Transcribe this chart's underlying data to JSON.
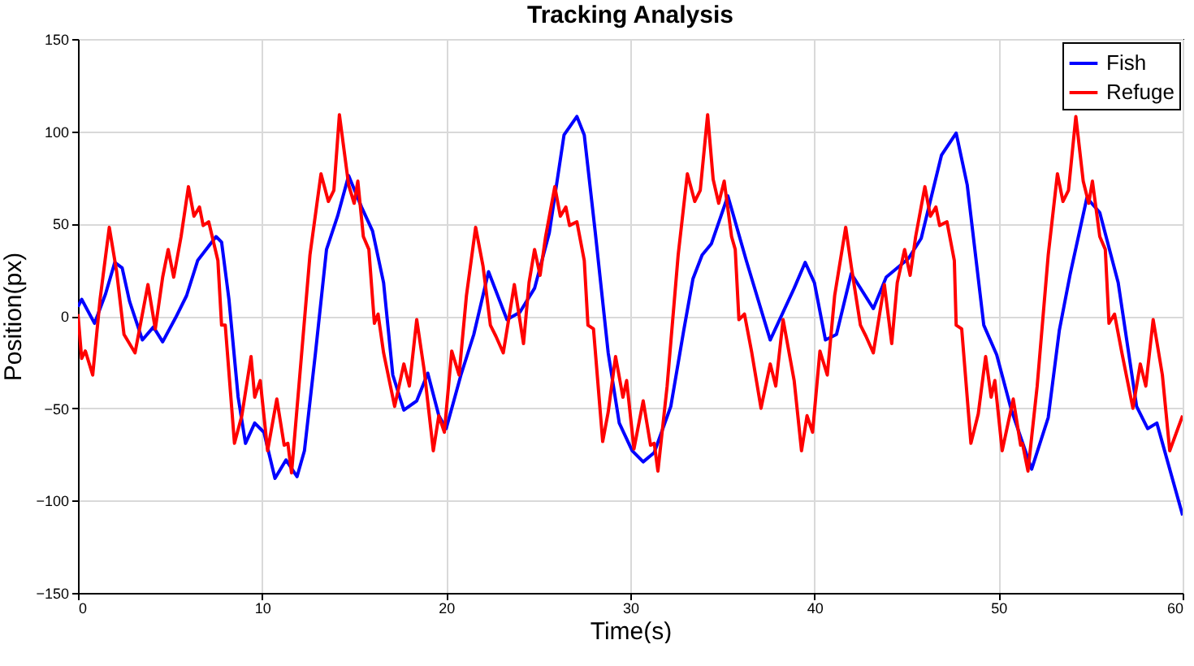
{
  "chart_data": {
    "type": "line",
    "title": "Tracking Analysis",
    "xlabel": "Time(s)",
    "ylabel": "Position(px)",
    "xlim": [
      0,
      60
    ],
    "xticks": [
      0,
      10,
      20,
      30,
      40,
      50,
      60
    ],
    "ylim": [
      -150,
      150
    ],
    "yticks": [
      -150,
      -100,
      -50,
      0,
      50,
      100,
      150
    ],
    "grid": true,
    "legend": "top right",
    "line_style": "solid",
    "marker": "none",
    "series": [
      {
        "name": "Fish",
        "color": "#0000ff",
        "x": [
          0,
          0.2,
          0.9,
          1.5,
          2.0,
          2.4,
          2.8,
          3.5,
          4.1,
          4.6,
          5.3,
          5.9,
          6.5,
          7.5,
          7.8,
          8.2,
          8.7,
          9.1,
          9.6,
          10.1,
          10.7,
          11.3,
          11.9,
          12.3,
          12.9,
          13.5,
          14.1,
          14.7,
          15.4,
          16.0,
          16.6,
          17.1,
          17.7,
          18.4,
          19.0,
          19.6,
          20.0,
          20.8,
          21.5,
          22.3,
          23.3,
          24.0,
          24.8,
          25.6,
          26.4,
          27.1,
          27.5,
          28.1,
          28.8,
          29.4,
          30.1,
          30.7,
          31.3,
          32.2,
          32.9,
          33.4,
          33.9,
          34.4,
          35.3,
          36.3,
          37.6,
          38.9,
          39.5,
          40.0,
          40.6,
          41.2,
          42.0,
          43.2,
          43.9,
          45.1,
          45.8,
          46.9,
          47.7,
          48.3,
          49.2,
          49.9,
          50.7,
          51.8,
          52.7,
          53.3,
          53.9,
          54.8,
          55.5,
          56.5,
          57.5,
          58.1,
          58.6,
          60
        ],
        "values": [
          5,
          9,
          -4,
          12,
          29,
          26,
          8,
          -13,
          -6,
          -14,
          -1,
          11,
          30,
          43,
          40,
          9,
          -44,
          -69,
          -58,
          -63,
          -88,
          -78,
          -87,
          -73,
          -20,
          36,
          54,
          76,
          59,
          46,
          18,
          -32,
          -51,
          -46,
          -31,
          -54,
          -61,
          -32,
          -10,
          24,
          -2,
          2,
          15,
          45,
          98,
          108,
          98,
          45,
          -20,
          -58,
          -73,
          -79,
          -74,
          -49,
          -8,
          20,
          33,
          39,
          65,
          30,
          -13,
          15,
          29,
          18,
          -13,
          -10,
          23,
          4,
          21,
          31,
          42,
          87,
          99,
          71,
          -5,
          -21,
          -51,
          -83,
          -55,
          -8,
          23,
          64,
          56,
          18,
          -49,
          -61,
          -58,
          -108
        ]
      },
      {
        "name": "Refuge",
        "color": "#ff0000",
        "x": [
          0,
          0.2,
          0.4,
          0.8,
          1.2,
          1.7,
          2.1,
          2.5,
          3.1,
          3.8,
          4.2,
          4.6,
          4.9,
          5.2,
          5.6,
          6.0,
          6.3,
          6.6,
          6.8,
          7.1,
          7.6,
          7.8,
          8.0,
          8.5,
          8.9,
          9.4,
          9.6,
          9.9,
          10.3,
          10.8,
          11.2,
          11.4,
          11.6,
          12.0,
          12.6,
          13.2,
          13.6,
          13.9,
          14.2,
          14.7,
          15.0,
          15.2,
          15.5,
          15.8,
          16.1,
          16.3,
          16.6,
          17.2,
          17.7,
          18.0,
          18.4,
          18.8,
          19.3,
          19.6,
          19.9,
          20.3,
          20.7,
          21.1,
          21.6,
          22.0,
          22.4,
          22.7,
          23.1,
          23.7,
          24.2,
          24.5,
          24.8,
          25.1,
          25.4,
          25.9,
          26.2,
          26.5,
          26.7,
          27.1,
          27.5,
          27.7,
          28.0,
          28.5,
          28.8,
          29.2,
          29.6,
          29.8,
          30.2,
          30.7,
          31.1,
          31.3,
          31.5,
          32.0,
          32.6,
          33.1,
          33.5,
          33.8,
          34.2,
          34.5,
          34.8,
          35.1,
          35.5,
          35.7,
          35.9,
          36.2,
          36.6,
          37.1,
          37.6,
          37.9,
          38.3,
          38.9,
          39.3,
          39.6,
          39.9,
          40.3,
          40.7,
          41.1,
          41.7,
          42.0,
          42.5,
          42.8,
          43.2,
          43.8,
          44.2,
          44.5,
          44.9,
          45.2,
          45.5,
          46.0,
          46.3,
          46.6,
          46.8,
          47.2,
          47.6,
          47.7,
          48.0,
          48.5,
          48.9,
          49.3,
          49.6,
          49.8,
          50.2,
          50.8,
          51.2,
          51.3,
          51.6,
          52.1,
          52.7,
          53.2,
          53.5,
          53.8,
          54.2,
          54.6,
          54.9,
          55.1,
          55.5,
          55.8,
          56.0,
          56.3,
          56.7,
          57.3,
          57.7,
          58.0,
          58.4,
          58.9,
          59.3,
          60
        ],
        "values": [
          1,
          -23,
          -19,
          -32,
          9,
          48,
          24,
          -10,
          -20,
          17,
          -7,
          21,
          36,
          21,
          43,
          70,
          54,
          59,
          49,
          51,
          30,
          -5,
          -5,
          -69,
          -54,
          -22,
          -44,
          -35,
          -73,
          -45,
          -70,
          -69,
          -85,
          -38,
          33,
          77,
          62,
          68,
          109,
          71,
          61,
          73,
          43,
          36,
          -4,
          1,
          -20,
          -49,
          -26,
          -38,
          -2,
          -29,
          -73,
          -54,
          -63,
          -19,
          -32,
          11,
          48,
          27,
          -5,
          -11,
          -20,
          17,
          -15,
          18,
          36,
          22,
          43,
          70,
          54,
          59,
          49,
          51,
          30,
          -5,
          -7,
          -68,
          -52,
          -22,
          -44,
          -35,
          -72,
          -46,
          -70,
          -69,
          -84,
          -38,
          33,
          77,
          62,
          68,
          109,
          74,
          61,
          73,
          43,
          36,
          -2,
          1,
          -20,
          -50,
          -26,
          -38,
          -2,
          -35,
          -73,
          -54,
          -63,
          -19,
          -32,
          11,
          48,
          27,
          -5,
          -11,
          -20,
          17,
          -15,
          18,
          36,
          22,
          43,
          70,
          54,
          59,
          49,
          51,
          30,
          -5,
          -7,
          -69,
          -53,
          -22,
          -44,
          -35,
          -73,
          -45,
          -70,
          -69,
          -84,
          -38,
          33,
          77,
          62,
          68,
          108,
          73,
          61,
          73,
          43,
          36,
          -4,
          1,
          -20,
          -50,
          -26,
          -38,
          -2,
          -32,
          -73,
          -54
        ]
      }
    ]
  }
}
